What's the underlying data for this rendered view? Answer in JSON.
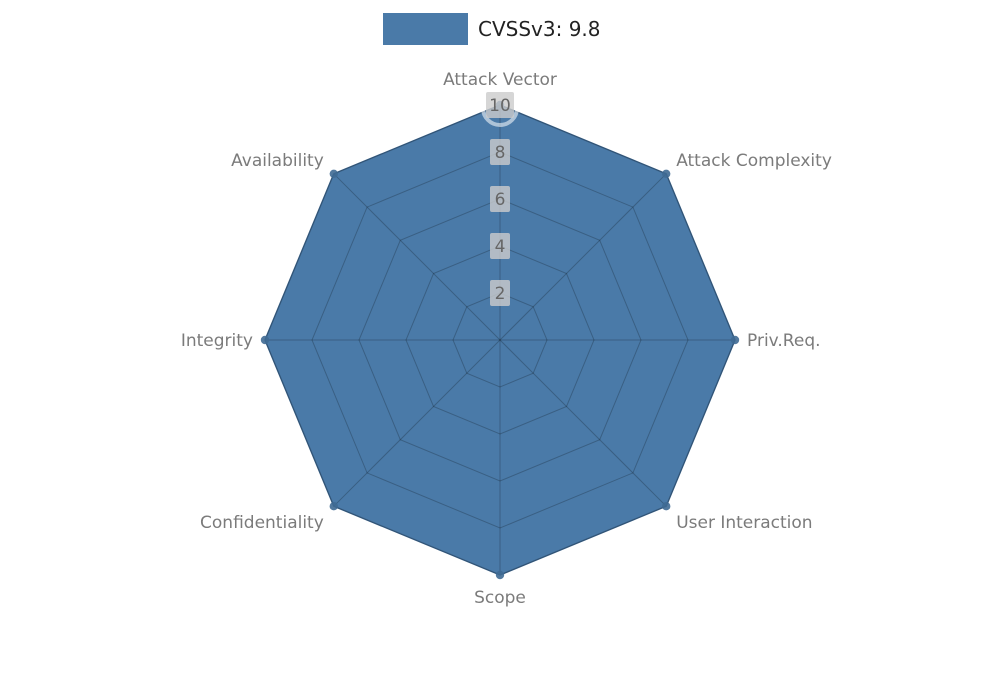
{
  "legend": {
    "label": "CVSSv3: 9.8",
    "swatch_color": "#4a7aa8"
  },
  "chart_data": {
    "type": "radar",
    "title": "CVSSv3: 9.8",
    "categories": [
      "Attack Vector",
      "Attack Complexity",
      "Priv.Req.",
      "User Interaction",
      "Scope",
      "Confidentiality",
      "Integrity",
      "Availability"
    ],
    "series": [
      {
        "name": "CVSSv3: 9.8",
        "values": [
          10,
          10,
          10,
          10,
          10,
          10,
          10,
          10
        ],
        "color": "#4a7aa8",
        "edge_color": "#3f6a94"
      }
    ],
    "ticks": [
      2,
      4,
      6,
      8,
      10
    ],
    "rlim": [
      0,
      10
    ],
    "grid": true,
    "legend_position": "top",
    "grid_color": "rgba(0,0,0,0.22)",
    "tick_box_color": "rgba(204,204,204,0.8)",
    "label_color": "#7b7b7b"
  }
}
